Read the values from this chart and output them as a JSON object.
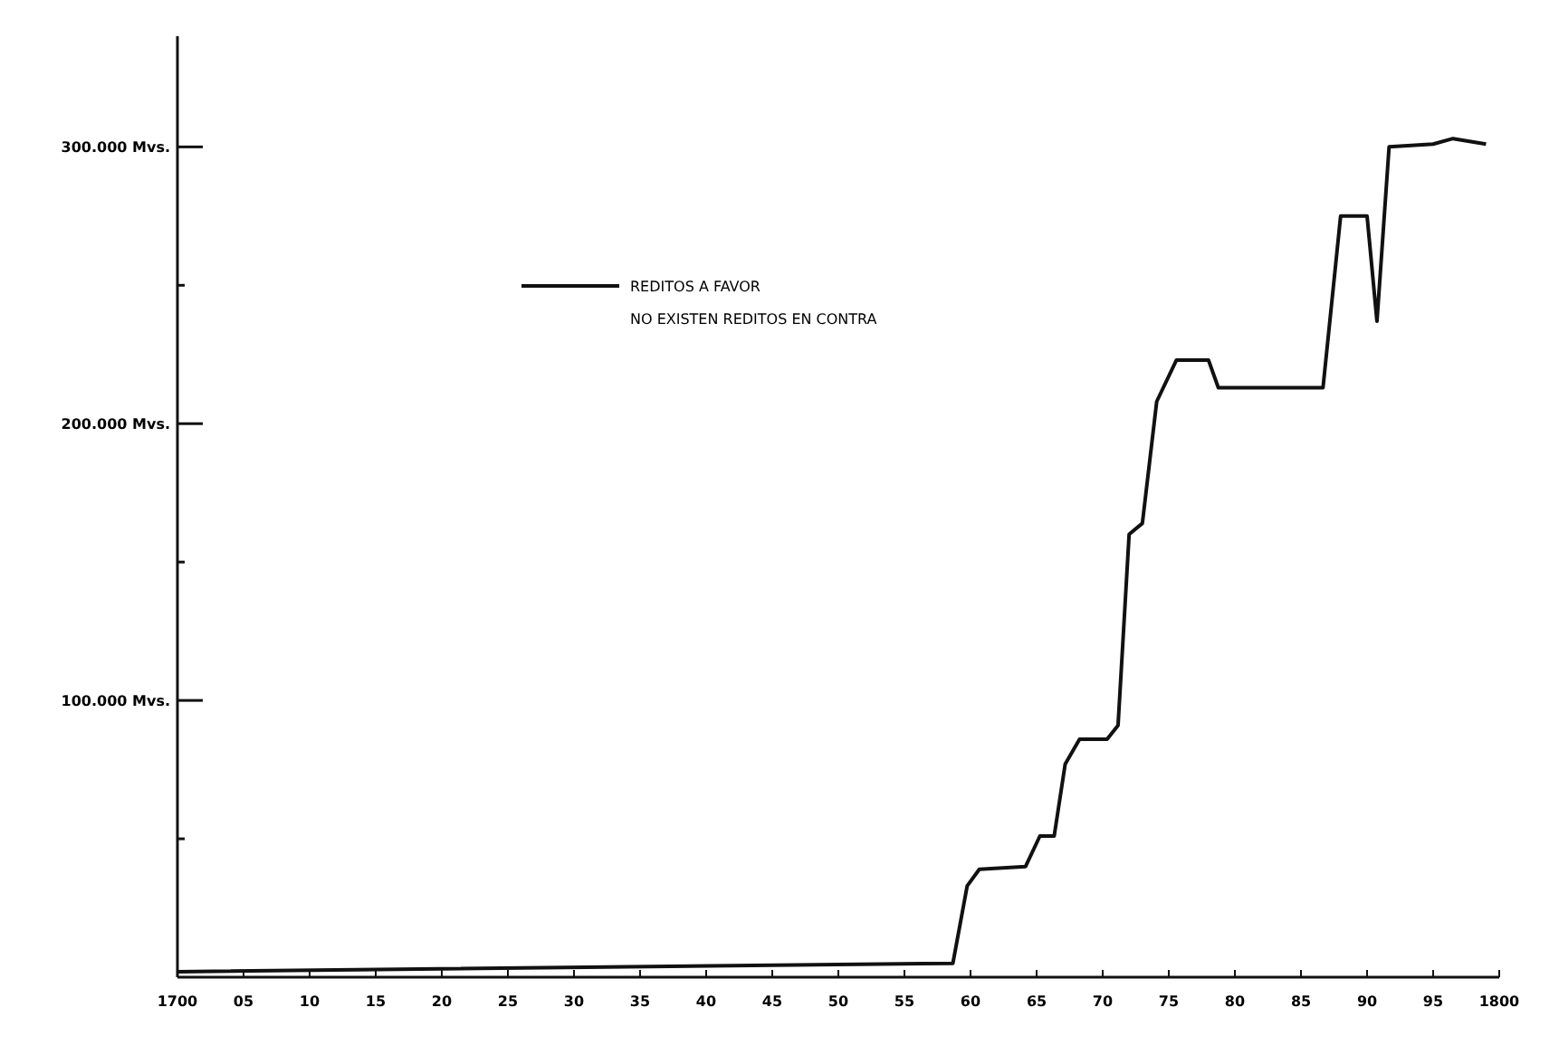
{
  "chart_data": {
    "type": "line",
    "legend": "top left",
    "marker": "none",
    "line_style": "solid",
    "grid": false,
    "xlim": [
      "1700",
      "1800"
    ],
    "ylim": [
      0,
      340000
    ],
    "xticks": [
      "1700",
      {
        "value": "1705",
        "label": "05"
      },
      {
        "value": "1710",
        "label": "10"
      },
      {
        "value": "1715",
        "label": "15"
      },
      {
        "value": "1720",
        "label": "20"
      },
      {
        "value": "1725",
        "label": "25"
      },
      {
        "value": "1730",
        "label": "30"
      },
      {
        "value": "1735",
        "label": "35"
      },
      {
        "value": "1740",
        "label": "40"
      },
      {
        "value": "1745",
        "label": "45"
      },
      {
        "value": "1750",
        "label": "50"
      },
      {
        "value": "1755",
        "label": "55"
      },
      {
        "value": "1760",
        "label": "60"
      },
      {
        "value": "1765",
        "label": "65"
      },
      {
        "value": "1770",
        "label": "70"
      },
      {
        "value": "1775",
        "label": "75"
      },
      {
        "value": "1780",
        "label": "80"
      },
      {
        "value": "1785",
        "label": "85"
      },
      {
        "value": "1790",
        "label": "90"
      },
      {
        "value": "1795",
        "label": "95"
      },
      "1800"
    ],
    "yticks": [
      {
        "value": 50000,
        "label": null
      },
      {
        "value": 100000,
        "label": "100.000 Mvs."
      },
      {
        "value": 150000,
        "label": null
      },
      {
        "value": 200000,
        "label": "200.000 Mvs."
      },
      {
        "value": 250000,
        "label": null
      },
      {
        "value": 300000,
        "label": "300.000 Mvs."
      }
    ],
    "annotations": [
      "NO EXISTEN REDITOS EN CONTRA"
    ],
    "series": [
      {
        "name": "REDITOS A FAVOR",
        "color": "#111111",
        "x": [
          "1700",
          "1758-09",
          "1759-10",
          "1760-09",
          "1764-03",
          "1765-04",
          "1766-05",
          "1767-03",
          "1768-04",
          "1770-05",
          "1771-03",
          "1772-01",
          "1773-01",
          "1774-02",
          "1775-08",
          "1778-01",
          "1778-10",
          "1786-09",
          "1788-01",
          "1790-01",
          "1790-10",
          "1791-09",
          "1795-01",
          "1796-07",
          "1799-01"
        ],
        "values": [
          2000,
          5000,
          33000,
          39000,
          40000,
          51000,
          51000,
          77000,
          86000,
          86000,
          91000,
          160000,
          164000,
          208000,
          223000,
          223000,
          213000,
          213000,
          275000,
          275000,
          237000,
          300000,
          301000,
          303000,
          301000
        ]
      }
    ]
  }
}
